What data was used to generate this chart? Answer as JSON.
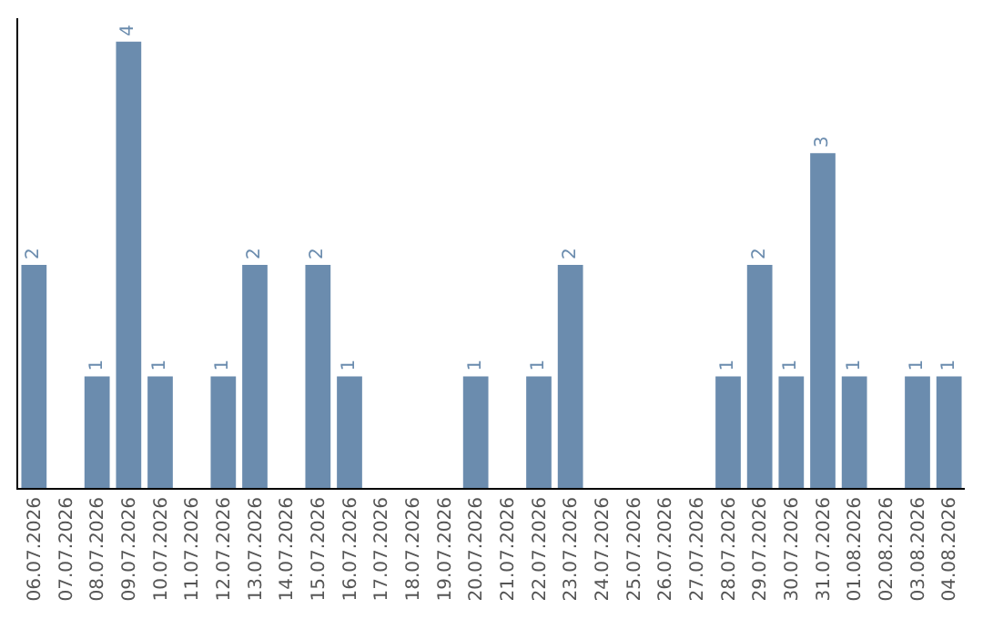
{
  "chart_data": {
    "type": "bar",
    "categories": [
      "06.07.2026",
      "07.07.2026",
      "08.07.2026",
      "09.07.2026",
      "10.07.2026",
      "11.07.2026",
      "12.07.2026",
      "13.07.2026",
      "14.07.2026",
      "15.07.2026",
      "16.07.2026",
      "17.07.2026",
      "18.07.2026",
      "19.07.2026",
      "20.07.2026",
      "21.07.2026",
      "22.07.2026",
      "23.07.2026",
      "24.07.2026",
      "25.07.2026",
      "26.07.2026",
      "27.07.2026",
      "28.07.2026",
      "29.07.2026",
      "30.07.2026",
      "31.07.2026",
      "01.08.2026",
      "02.08.2026",
      "03.08.2026",
      "04.08.2026"
    ],
    "values": [
      2,
      0,
      1,
      4,
      1,
      0,
      1,
      2,
      0,
      2,
      1,
      0,
      0,
      0,
      1,
      0,
      1,
      2,
      0,
      0,
      0,
      0,
      1,
      2,
      1,
      3,
      1,
      0,
      1,
      1
    ],
    "value_labels": [
      "2",
      null,
      "1",
      "4",
      "1",
      null,
      "1",
      "2",
      null,
      "2",
      "1",
      null,
      null,
      null,
      "1",
      null,
      "1",
      "2",
      null,
      null,
      null,
      null,
      "1",
      "2",
      "1",
      "3",
      "1",
      null,
      "1",
      "1"
    ],
    "color": "#6b8cae",
    "tick_labels": "x"
  }
}
